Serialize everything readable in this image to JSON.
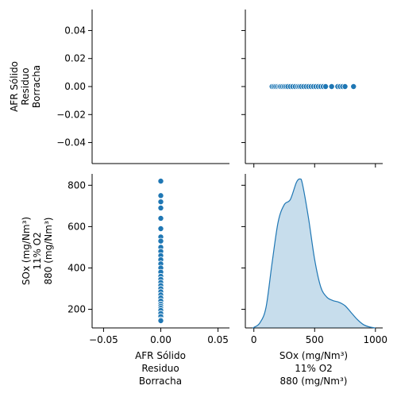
{
  "chart_data": [
    {
      "panel": "top-left",
      "type": "empty",
      "xlabel": "",
      "ylabel": [
        "AFR Sólido",
        "Residuo",
        "Borracha"
      ],
      "yticks": [
        "0.04",
        "0.02",
        "0.00",
        "−0.02",
        "−0.04"
      ],
      "ylim": [
        -0.055,
        0.055
      ],
      "grid": false
    },
    {
      "panel": "top-right",
      "type": "scatter",
      "color": "#1f77b4",
      "x": [
        150,
        165,
        180,
        195,
        210,
        220,
        235,
        250,
        265,
        280,
        300,
        320,
        340,
        360,
        375,
        390,
        410,
        430,
        450,
        470,
        490,
        510,
        530,
        550,
        570,
        590,
        640,
        690,
        710,
        730,
        750,
        820
      ],
      "y": [
        0,
        0,
        0,
        0,
        0,
        0,
        0,
        0,
        0,
        0,
        0,
        0,
        0,
        0,
        0,
        0,
        0,
        0,
        0,
        0,
        0,
        0,
        0,
        0,
        0,
        0,
        0,
        0,
        0,
        0,
        0,
        0
      ],
      "xlim": [
        -70,
        1060
      ],
      "ylim": [
        -0.055,
        0.055
      ],
      "grid": false
    },
    {
      "panel": "bottom-left",
      "type": "scatter",
      "color": "#1f77b4",
      "x": [
        0,
        0,
        0,
        0,
        0,
        0,
        0,
        0,
        0,
        0,
        0,
        0,
        0,
        0,
        0,
        0,
        0,
        0,
        0,
        0,
        0,
        0,
        0,
        0,
        0,
        0,
        0,
        0,
        0,
        0,
        0,
        0
      ],
      "y": [
        820,
        750,
        720,
        690,
        640,
        590,
        550,
        530,
        500,
        480,
        460,
        440,
        420,
        400,
        380,
        360,
        345,
        330,
        315,
        300,
        285,
        270,
        255,
        240,
        225,
        215,
        205,
        195,
        180,
        165,
        150,
        145
      ],
      "xlabel": [
        "AFR Sólido",
        "Residuo",
        "Borracha"
      ],
      "ylabel": [
        "SOx (mg/Nm³)",
        "11% O2",
        "880 (mg/Nm³)"
      ],
      "xticks": [
        "−0.05",
        "0.00",
        "0.05"
      ],
      "yticks": [
        "800",
        "600",
        "400",
        "200"
      ],
      "xlim": [
        -0.06,
        0.06
      ],
      "ylim": [
        110,
        855
      ],
      "grid": false
    },
    {
      "panel": "bottom-right",
      "type": "area",
      "subtype": "kde",
      "color": "#1f77b4",
      "fill_opacity": 0.25,
      "x": [
        -10,
        0,
        50,
        100,
        150,
        200,
        250,
        300,
        350,
        380,
        400,
        450,
        500,
        550,
        600,
        650,
        700,
        750,
        800,
        850,
        900,
        950,
        1000
      ],
      "y": [
        0.0,
        0.003,
        0.03,
        0.12,
        0.38,
        0.62,
        0.72,
        0.75,
        0.85,
        0.87,
        0.84,
        0.64,
        0.4,
        0.24,
        0.18,
        0.16,
        0.15,
        0.13,
        0.09,
        0.05,
        0.02,
        0.006,
        0.0
      ],
      "xlabel": [
        "SOx (mg/Nm³)",
        "11% O2",
        "880 (mg/Nm³)"
      ],
      "xticks": [
        "0",
        "500",
        "1000"
      ],
      "xlim": [
        -70,
        1060
      ],
      "ylim": [
        0,
        0.9
      ],
      "grid": false
    }
  ]
}
